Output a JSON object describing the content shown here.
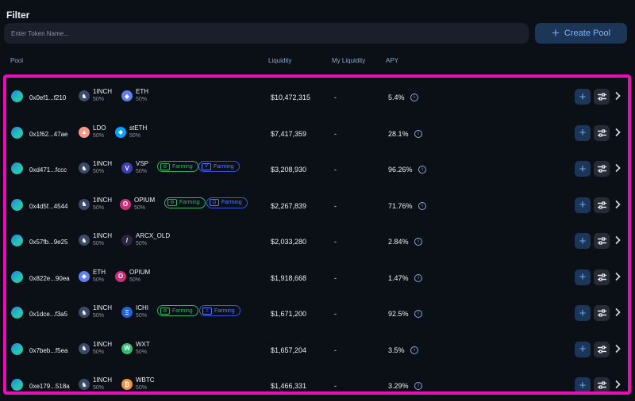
{
  "filter": {
    "title": "Filter",
    "placeholder": "Enter Token Name...",
    "create_label": "Create Pool"
  },
  "headers": {
    "pool": "Pool",
    "liquidity": "Liquidity",
    "my_liquidity": "My Liquidity",
    "apy": "APY"
  },
  "colors": {
    "accent": "#6aa8ff",
    "highlight_frame": "#e80fb4",
    "farming_green": "#2fb36a",
    "farming_blue": "#5b7bff"
  },
  "rows": [
    {
      "addr": "0x0ef1...f210",
      "t1": {
        "sym": "1INCH",
        "pct": "50%",
        "icon": "1inch-icon",
        "color": "#3a4a66",
        "glyph": "♞"
      },
      "t2": {
        "sym": "ETH",
        "pct": "50%",
        "icon": "eth-icon",
        "color": "#627eea",
        "glyph": "◆"
      },
      "farm": [],
      "liquidity": "$10,472,315",
      "my": "-",
      "apy": "5.4%"
    },
    {
      "addr": "0x1f62...47ae",
      "t1": {
        "sym": "LDO",
        "pct": "50%",
        "icon": "ldo-icon",
        "color": "#f69988",
        "glyph": "▲"
      },
      "t2": {
        "sym": "stETH",
        "pct": "50%",
        "icon": "steth-icon",
        "color": "#00a3ff",
        "glyph": "◆"
      },
      "farm": [],
      "liquidity": "$7,417,359",
      "my": "-",
      "apy": "28.1%"
    },
    {
      "addr": "0xd471...fccc",
      "t1": {
        "sym": "1INCH",
        "pct": "50%",
        "icon": "1inch-icon",
        "color": "#3a4a66",
        "glyph": "♞"
      },
      "t2": {
        "sym": "VSP",
        "pct": "50%",
        "icon": "vsp-icon",
        "color": "#3d40b5",
        "glyph": "V"
      },
      "farm": [
        {
          "label": "Farming",
          "kind": "green",
          "glyph": "⚙"
        },
        {
          "label": "Farming",
          "kind": "blue",
          "glyph": "V"
        }
      ],
      "liquidity": "$3,208,930",
      "my": "-",
      "apy": "96.26%"
    },
    {
      "addr": "0x4d5f...4544",
      "t1": {
        "sym": "1INCH",
        "pct": "50%",
        "icon": "1inch-icon",
        "color": "#3a4a66",
        "glyph": "♞"
      },
      "t2": {
        "sym": "OPIUM",
        "pct": "50%",
        "icon": "opium-icon",
        "color": "#c9307a",
        "glyph": "O"
      },
      "farm": [
        {
          "label": "Farming",
          "kind": "green",
          "glyph": "⚙"
        },
        {
          "label": "Farming",
          "kind": "blue",
          "glyph": "O"
        }
      ],
      "liquidity": "$2,267,839",
      "my": "-",
      "apy": "71.76%"
    },
    {
      "addr": "0x57fb...9e25",
      "t1": {
        "sym": "1INCH",
        "pct": "50%",
        "icon": "1inch-icon",
        "color": "#3a4a66",
        "glyph": "♞"
      },
      "t2": {
        "sym": "ARCX_OLD",
        "pct": "50%",
        "icon": "arcx-icon",
        "color": "#2b2540",
        "glyph": "/"
      },
      "farm": [],
      "liquidity": "$2,033,280",
      "my": "-",
      "apy": "2.84%"
    },
    {
      "addr": "0x822e...90ea",
      "t1": {
        "sym": "ETH",
        "pct": "50%",
        "icon": "eth-icon",
        "color": "#627eea",
        "glyph": "◆"
      },
      "t2": {
        "sym": "OPIUM",
        "pct": "50%",
        "icon": "opium-icon",
        "color": "#c9307a",
        "glyph": "O"
      },
      "farm": [],
      "liquidity": "$1,918,668",
      "my": "-",
      "apy": "1.47%"
    },
    {
      "addr": "0x1dce...f3a5",
      "t1": {
        "sym": "1INCH",
        "pct": "50%",
        "icon": "1inch-icon",
        "color": "#3a4a66",
        "glyph": "♞"
      },
      "t2": {
        "sym": "ICHI",
        "pct": "50%",
        "icon": "ichi-icon",
        "color": "#1f63d6",
        "glyph": "Ξ"
      },
      "farm": [
        {
          "label": "Farming",
          "kind": "green",
          "glyph": "⚙"
        },
        {
          "label": "Farming",
          "kind": "blue",
          "glyph": "Ξ"
        }
      ],
      "liquidity": "$1,671,200",
      "my": "-",
      "apy": "92.5%"
    },
    {
      "addr": "0x7beb...f5ea",
      "t1": {
        "sym": "1INCH",
        "pct": "50%",
        "icon": "1inch-icon",
        "color": "#3a4a66",
        "glyph": "♞"
      },
      "t2": {
        "sym": "WXT",
        "pct": "50%",
        "icon": "wxt-icon",
        "color": "#2fbf6f",
        "glyph": "W"
      },
      "farm": [],
      "liquidity": "$1,657,204",
      "my": "-",
      "apy": "3.5%"
    },
    {
      "addr": "0xe179...518a",
      "t1": {
        "sym": "1INCH",
        "pct": "50%",
        "icon": "1inch-icon",
        "color": "#3a4a66",
        "glyph": "♞"
      },
      "t2": {
        "sym": "WBTC",
        "pct": "50%",
        "icon": "wbtc-icon",
        "color": "#f09242",
        "glyph": "₿"
      },
      "farm": [],
      "liquidity": "$1,466,331",
      "my": "-",
      "apy": "3.29%"
    }
  ]
}
